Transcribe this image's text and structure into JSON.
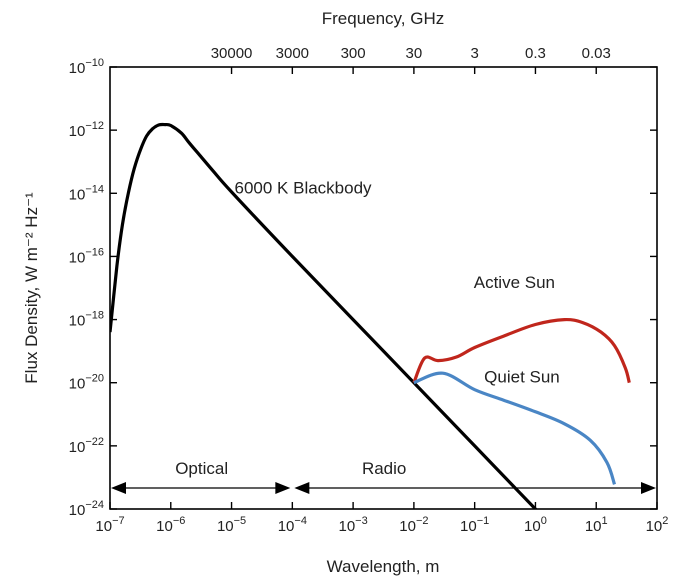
{
  "chart_data": {
    "type": "line",
    "xscale": "log",
    "yscale": "log",
    "xlim": [
      1e-07,
      100
    ],
    "ylim": [
      1e-24,
      1e-10
    ],
    "xlabel": "Wavelength, m",
    "ylabel": "Flux Density, W m⁻² Hz⁻¹",
    "top_axis_label": "Frequency, GHz",
    "x_ticks": [
      {
        "value": 1e-07,
        "base": "10",
        "exp": "−7"
      },
      {
        "value": 1e-06,
        "base": "10",
        "exp": "−6"
      },
      {
        "value": 1e-05,
        "base": "10",
        "exp": "−5"
      },
      {
        "value": 0.0001,
        "base": "10",
        "exp": "−4"
      },
      {
        "value": 0.001,
        "base": "10",
        "exp": "−3"
      },
      {
        "value": 0.01,
        "base": "10",
        "exp": "−2"
      },
      {
        "value": 0.1,
        "base": "10",
        "exp": "−1"
      },
      {
        "value": 1,
        "base": "10",
        "exp": "0"
      },
      {
        "value": 10,
        "base": "10",
        "exp": "1"
      },
      {
        "value": 100,
        "base": "10",
        "exp": "2"
      }
    ],
    "y_ticks": [
      {
        "value": 1e-10,
        "base": "10",
        "exp": "−10"
      },
      {
        "value": 1e-12,
        "base": "10",
        "exp": "−12"
      },
      {
        "value": 1e-14,
        "base": "10",
        "exp": "−14"
      },
      {
        "value": 1e-16,
        "base": "10",
        "exp": "−16"
      },
      {
        "value": 1e-18,
        "base": "10",
        "exp": "−18"
      },
      {
        "value": 1e-20,
        "base": "10",
        "exp": "−20"
      },
      {
        "value": 1e-22,
        "base": "10",
        "exp": "−22"
      },
      {
        "value": 1e-24,
        "base": "10",
        "exp": "−24"
      }
    ],
    "top_ticks": [
      {
        "label": "30000",
        "wavelength": 1e-05
      },
      {
        "label": "3000",
        "wavelength": 0.0001
      },
      {
        "label": "300",
        "wavelength": 0.001
      },
      {
        "label": "30",
        "wavelength": 0.01
      },
      {
        "label": "3",
        "wavelength": 0.1
      },
      {
        "label": "0.3",
        "wavelength": 1
      },
      {
        "label": "0.03",
        "wavelength": 10
      }
    ],
    "series": [
      {
        "name": "6000 K Blackbody",
        "color": "#000000",
        "points": [
          [
            1e-07,
            4e-19
          ],
          [
            1.3e-07,
            5e-17
          ],
          [
            1.6e-07,
            1e-15
          ],
          [
            2e-07,
            1e-14
          ],
          [
            2.5e-07,
            6e-14
          ],
          [
            3.2e-07,
            2.5e-13
          ],
          [
            4e-07,
            6.5e-13
          ],
          [
            5e-07,
            1.1e-12
          ],
          [
            6.3e-07,
            1.45e-12
          ],
          [
            8e-07,
            1.5e-12
          ],
          [
            1e-06,
            1.4e-12
          ],
          [
            1.5e-06,
            8e-13
          ],
          [
            2e-06,
            4e-13
          ],
          [
            3e-06,
            1.6e-13
          ],
          [
            5e-06,
            5e-14
          ],
          [
            1e-05,
            1.1e-14
          ],
          [
            0.0001,
            1e-16
          ],
          [
            0.001,
            1e-18
          ],
          [
            0.01,
            1e-20
          ],
          [
            0.1,
            1e-22
          ],
          [
            1.0,
            1e-24
          ],
          [
            5.0,
            4e-26
          ]
        ]
      },
      {
        "name": "Active Sun",
        "color": "#c0261c",
        "points": [
          [
            0.01,
            1e-20
          ],
          [
            0.015,
            6e-20
          ],
          [
            0.025,
            5e-20
          ],
          [
            0.05,
            6.5e-20
          ],
          [
            0.1,
            1.3e-19
          ],
          [
            0.3,
            3e-19
          ],
          [
            1.0,
            7e-19
          ],
          [
            3.0,
            1e-18
          ],
          [
            6.0,
            8e-19
          ],
          [
            12.0,
            4e-19
          ],
          [
            20.0,
            1.5e-19
          ],
          [
            30.0,
            3e-20
          ],
          [
            35.0,
            1e-20
          ]
        ]
      },
      {
        "name": "Quiet Sun",
        "color": "#4a86c5",
        "points": [
          [
            0.01,
            1e-20
          ],
          [
            0.03,
            2e-20
          ],
          [
            0.1,
            6e-21
          ],
          [
            0.3,
            2.8e-21
          ],
          [
            1.0,
            1.2e-21
          ],
          [
            3.0,
            5e-22
          ],
          [
            8.0,
            1.5e-22
          ],
          [
            15.0,
            3e-23
          ],
          [
            20.0,
            6e-24
          ]
        ]
      }
    ],
    "annotations": [
      {
        "text": "6000 K Blackbody",
        "x": 0.00015,
        "y": 1e-14
      },
      {
        "text": "Active Sun",
        "x": 0.45,
        "y": 1e-17
      },
      {
        "text": "Quiet Sun",
        "x": 0.6,
        "y": 1e-20
      }
    ],
    "regions": [
      {
        "label": "Optical",
        "from": 1e-07,
        "to": 0.0001
      },
      {
        "label": "Radio",
        "from": 0.0001,
        "to": 100
      }
    ]
  }
}
